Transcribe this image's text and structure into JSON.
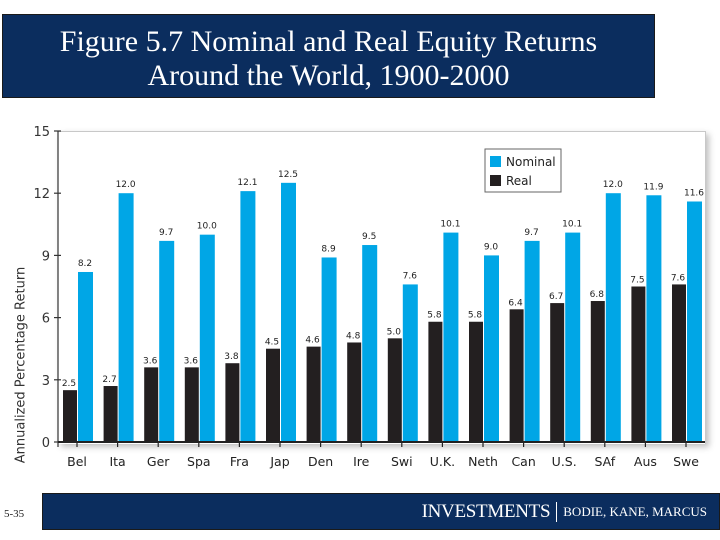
{
  "title": {
    "line1": "Figure 5.7 Nominal and Real Equity Returns",
    "line2": "Around the World, 1900-2000"
  },
  "footer": {
    "page_number": "5-35",
    "brand": "INVESTMENTS",
    "authors": "BODIE, KANE, MARCUS"
  },
  "colors": {
    "header_bg": "#0b2d5e",
    "nominal": "#00a6e6",
    "real": "#231f20"
  },
  "chart_data": {
    "type": "bar",
    "title": "Figure 5.7 Nominal and Real Equity Returns Around the World, 1900-2000",
    "xlabel": "",
    "ylabel": "Annualized Percentage Return",
    "ylim": [
      0,
      15
    ],
    "yticks": [
      0,
      3,
      6,
      9,
      12,
      15
    ],
    "grid": false,
    "legend_position": "upper right",
    "categories": [
      "Bel",
      "Ita",
      "Ger",
      "Spa",
      "Fra",
      "Jap",
      "Den",
      "Ire",
      "Swi",
      "U.K.",
      "Neth",
      "Can",
      "U.S.",
      "SAf",
      "Aus",
      "Swe"
    ],
    "series": [
      {
        "name": "Nominal",
        "color": "#00a6e6",
        "values": [
          8.2,
          12.0,
          9.7,
          10.0,
          12.1,
          12.5,
          8.9,
          9.5,
          7.6,
          10.1,
          9.0,
          9.7,
          10.1,
          12.0,
          11.9,
          11.6
        ]
      },
      {
        "name": "Real",
        "color": "#231f20",
        "values": [
          2.5,
          2.7,
          3.6,
          3.6,
          3.8,
          4.5,
          4.6,
          4.8,
          5.0,
          5.8,
          5.8,
          6.4,
          6.7,
          6.8,
          7.5,
          7.6
        ]
      }
    ]
  }
}
